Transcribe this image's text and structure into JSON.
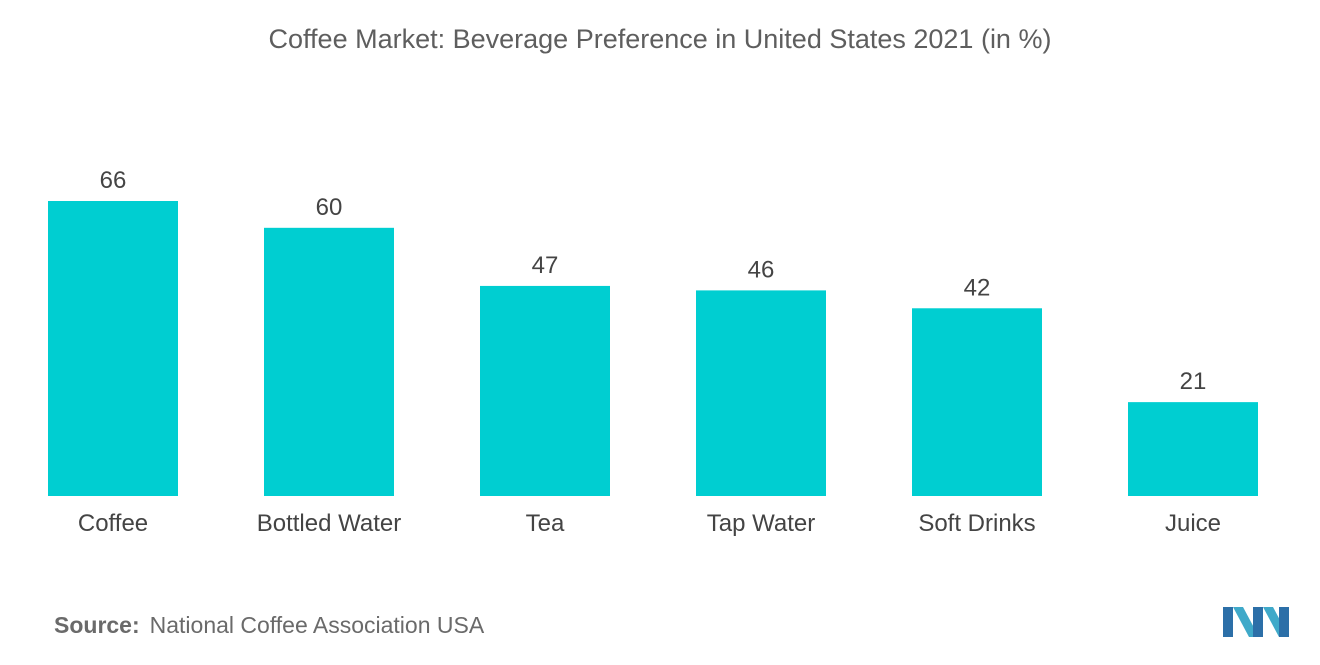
{
  "title": "Coffee Market: Beverage Preference in United States 2021 (in %)",
  "source": {
    "label": "Source:",
    "text": "National Coffee Association USA"
  },
  "colors": {
    "bar": "#00ced1",
    "text": "#444444"
  },
  "chart_data": {
    "type": "bar",
    "title": "Coffee Market: Beverage Preference in United States 2021 (in %)",
    "categories": [
      "Coffee",
      "Bottled Water",
      "Tea",
      "Tap Water",
      "Soft Drinks",
      "Juice"
    ],
    "values": [
      66,
      60,
      47,
      46,
      42,
      21
    ],
    "xlabel": "",
    "ylabel": "",
    "ylim": [
      0,
      66
    ],
    "grid": false,
    "legend": "none"
  }
}
